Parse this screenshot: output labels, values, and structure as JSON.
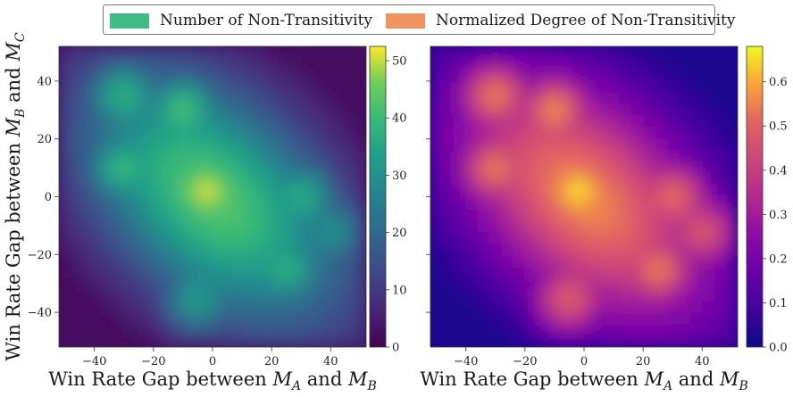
{
  "legend": {
    "items": [
      {
        "label": "Number of Non-Transitivity",
        "color": "#3dbc83"
      },
      {
        "label": "Normalized Degree of Non-Transitivity",
        "color": "#f0935e"
      }
    ]
  },
  "chart_data": [
    {
      "type": "heatmap",
      "name": "Number of Non-Transitivity",
      "colormap": "viridis",
      "xlabel": "Win Rate Gap between M_A and M_B",
      "ylabel": "Win Rate Gap between M_B and M_C",
      "xlim": [
        -52,
        52
      ],
      "ylim": [
        -52,
        52
      ],
      "xticks": [
        -40,
        -20,
        0,
        20,
        40
      ],
      "yticks": [
        -40,
        -20,
        0,
        20,
        40
      ],
      "colorbar": {
        "range": [
          0,
          52.5
        ],
        "ticks": [
          0,
          10,
          20,
          30,
          40,
          50
        ]
      },
      "peak": {
        "x": 0,
        "y": 0,
        "value": 52
      },
      "hotspots": [
        {
          "x": -2,
          "y": 2,
          "value": 52
        },
        {
          "x": -30,
          "y": 35,
          "value": 38
        },
        {
          "x": -30,
          "y": 10,
          "value": 40
        },
        {
          "x": -10,
          "y": 30,
          "value": 42
        },
        {
          "x": 25,
          "y": -25,
          "value": 38
        },
        {
          "x": 30,
          "y": 0,
          "value": 37
        },
        {
          "x": -5,
          "y": -35,
          "value": 33
        },
        {
          "x": 40,
          "y": -12,
          "value": 30
        }
      ]
    },
    {
      "type": "heatmap",
      "name": "Normalized Degree of Non-Transitivity",
      "colormap": "plasma",
      "xlabel": "Win Rate Gap between M_A and M_B",
      "ylabel": "",
      "xlim": [
        -52,
        52
      ],
      "ylim": [
        -52,
        52
      ],
      "xticks": [
        -40,
        -20,
        0,
        20,
        40
      ],
      "yticks": [
        -40,
        -20,
        0,
        20,
        40
      ],
      "colorbar": {
        "range": [
          0,
          0.68
        ],
        "ticks": [
          "0.0",
          "0.1",
          "0.2",
          "0.3",
          "0.4",
          "0.5",
          "0.6"
        ]
      },
      "peak": {
        "x": 0,
        "y": 0,
        "value": 0.67
      },
      "hotspots": [
        {
          "x": -2,
          "y": 2,
          "value": 0.67
        },
        {
          "x": -30,
          "y": 35,
          "value": 0.55
        },
        {
          "x": -30,
          "y": 10,
          "value": 0.55
        },
        {
          "x": -10,
          "y": 30,
          "value": 0.57
        },
        {
          "x": 25,
          "y": -25,
          "value": 0.55
        },
        {
          "x": 30,
          "y": 0,
          "value": 0.53
        },
        {
          "x": -5,
          "y": -35,
          "value": 0.5
        },
        {
          "x": 40,
          "y": -12,
          "value": 0.48
        }
      ]
    }
  ]
}
